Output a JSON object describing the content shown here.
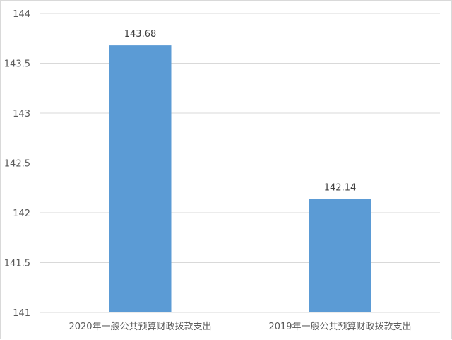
{
  "chart_data": {
    "type": "bar",
    "categories": [
      "2020年一般公共预算财政拨款支出",
      "2019年一般公共预算财政拨款支出"
    ],
    "values": [
      143.68,
      142.14
    ],
    "data_labels": [
      "143.68",
      "142.14"
    ],
    "title": "",
    "xlabel": "",
    "ylabel": "",
    "ylim": [
      141,
      144
    ],
    "yticks": [
      141,
      141.5,
      142,
      142.5,
      143,
      143.5,
      144
    ],
    "ytick_labels": [
      "141",
      "141.5",
      "142",
      "142.5",
      "143",
      "143.5",
      "144"
    ],
    "grid": true,
    "legend": "none",
    "bar_color": "#5b9bd5",
    "grid_color": "#d9d9d9"
  }
}
